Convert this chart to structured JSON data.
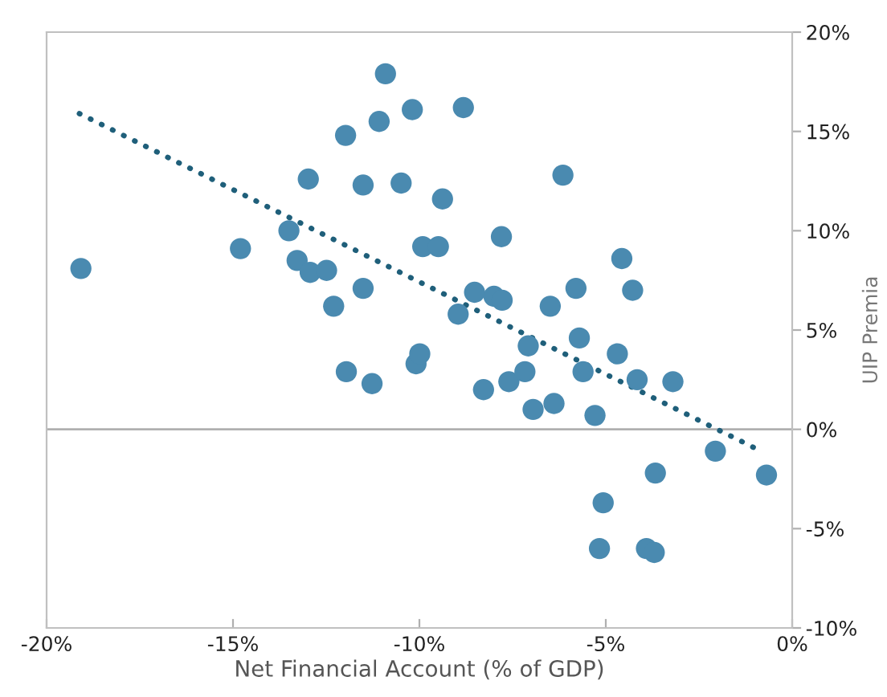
{
  "chart_data": {
    "type": "scatter",
    "xlabel": "Net Financial Account (% of GDP)",
    "ylabel": "UIP Premia",
    "xlim": [
      -20,
      0
    ],
    "xticks": [
      {
        "value": -20,
        "label": "-20%"
      },
      {
        "value": -15,
        "label": "-15%"
      },
      {
        "value": -10,
        "label": "-10%"
      },
      {
        "value": -5,
        "label": "-5%"
      },
      {
        "value": 0,
        "label": "0%"
      }
    ],
    "ylim": [
      -10,
      20
    ],
    "yticks": [
      {
        "value": -10,
        "label": "-10%"
      },
      {
        "value": -5,
        "label": "-5%"
      },
      {
        "value": 0,
        "label": "0%"
      },
      {
        "value": 5,
        "label": "5%"
      },
      {
        "value": 10,
        "label": "10%"
      },
      {
        "value": 15,
        "label": "15%"
      },
      {
        "value": 20,
        "label": "20%"
      }
    ],
    "grid": false,
    "legend": false,
    "marker": "circle",
    "ref_lines": [
      {
        "axis": "y",
        "value": 0,
        "color": "#b0b0b0",
        "line_style": "solid"
      }
    ],
    "series": [
      {
        "color": "#4a8ab0",
        "x": [
          -19.08,
          -14.8,
          -13.5,
          -13.28,
          -12.93,
          -12.49,
          -12.3,
          -12.98,
          -11.98,
          -11.96,
          -11.51,
          -11.51,
          -11.27,
          -11.08,
          -10.91,
          -10.49,
          -10.19,
          -10.09,
          -9.99,
          -9.91,
          -9.49,
          -9.38,
          -8.96,
          -8.82,
          -8.52,
          -8.28,
          -8.0,
          -7.8,
          -7.78,
          -7.6,
          -7.17,
          -7.08,
          -6.95,
          -6.49,
          -6.39,
          -6.15,
          -5.8,
          -5.71,
          -5.61,
          -5.29,
          -4.69,
          -4.57,
          -4.28,
          -4.16,
          -3.2,
          -5.07,
          -5.17,
          -3.91,
          -3.7,
          -3.67,
          -2.06,
          -0.69
        ],
        "values": [
          8.1,
          9.1,
          10.0,
          8.5,
          7.9,
          8.0,
          6.2,
          12.6,
          14.8,
          2.9,
          7.1,
          12.3,
          2.3,
          15.5,
          17.9,
          12.4,
          16.1,
          3.3,
          3.8,
          9.2,
          9.2,
          11.6,
          5.8,
          16.2,
          6.9,
          2.0,
          6.7,
          9.7,
          6.5,
          2.4,
          2.9,
          4.2,
          1.0,
          6.2,
          1.3,
          12.8,
          7.1,
          4.6,
          2.9,
          0.7,
          3.8,
          8.6,
          7.0,
          2.5,
          2.4,
          -3.7,
          -6.0,
          -6.0,
          -6.2,
          -2.2,
          -1.1,
          -2.3
        ]
      },
      {
        "type": "line",
        "color": "#1f5f7a",
        "line_style": "dotted",
        "marker": "none",
        "x": [
          -19.12,
          -0.83
        ],
        "values": [
          15.9,
          -1.1
        ]
      }
    ]
  }
}
